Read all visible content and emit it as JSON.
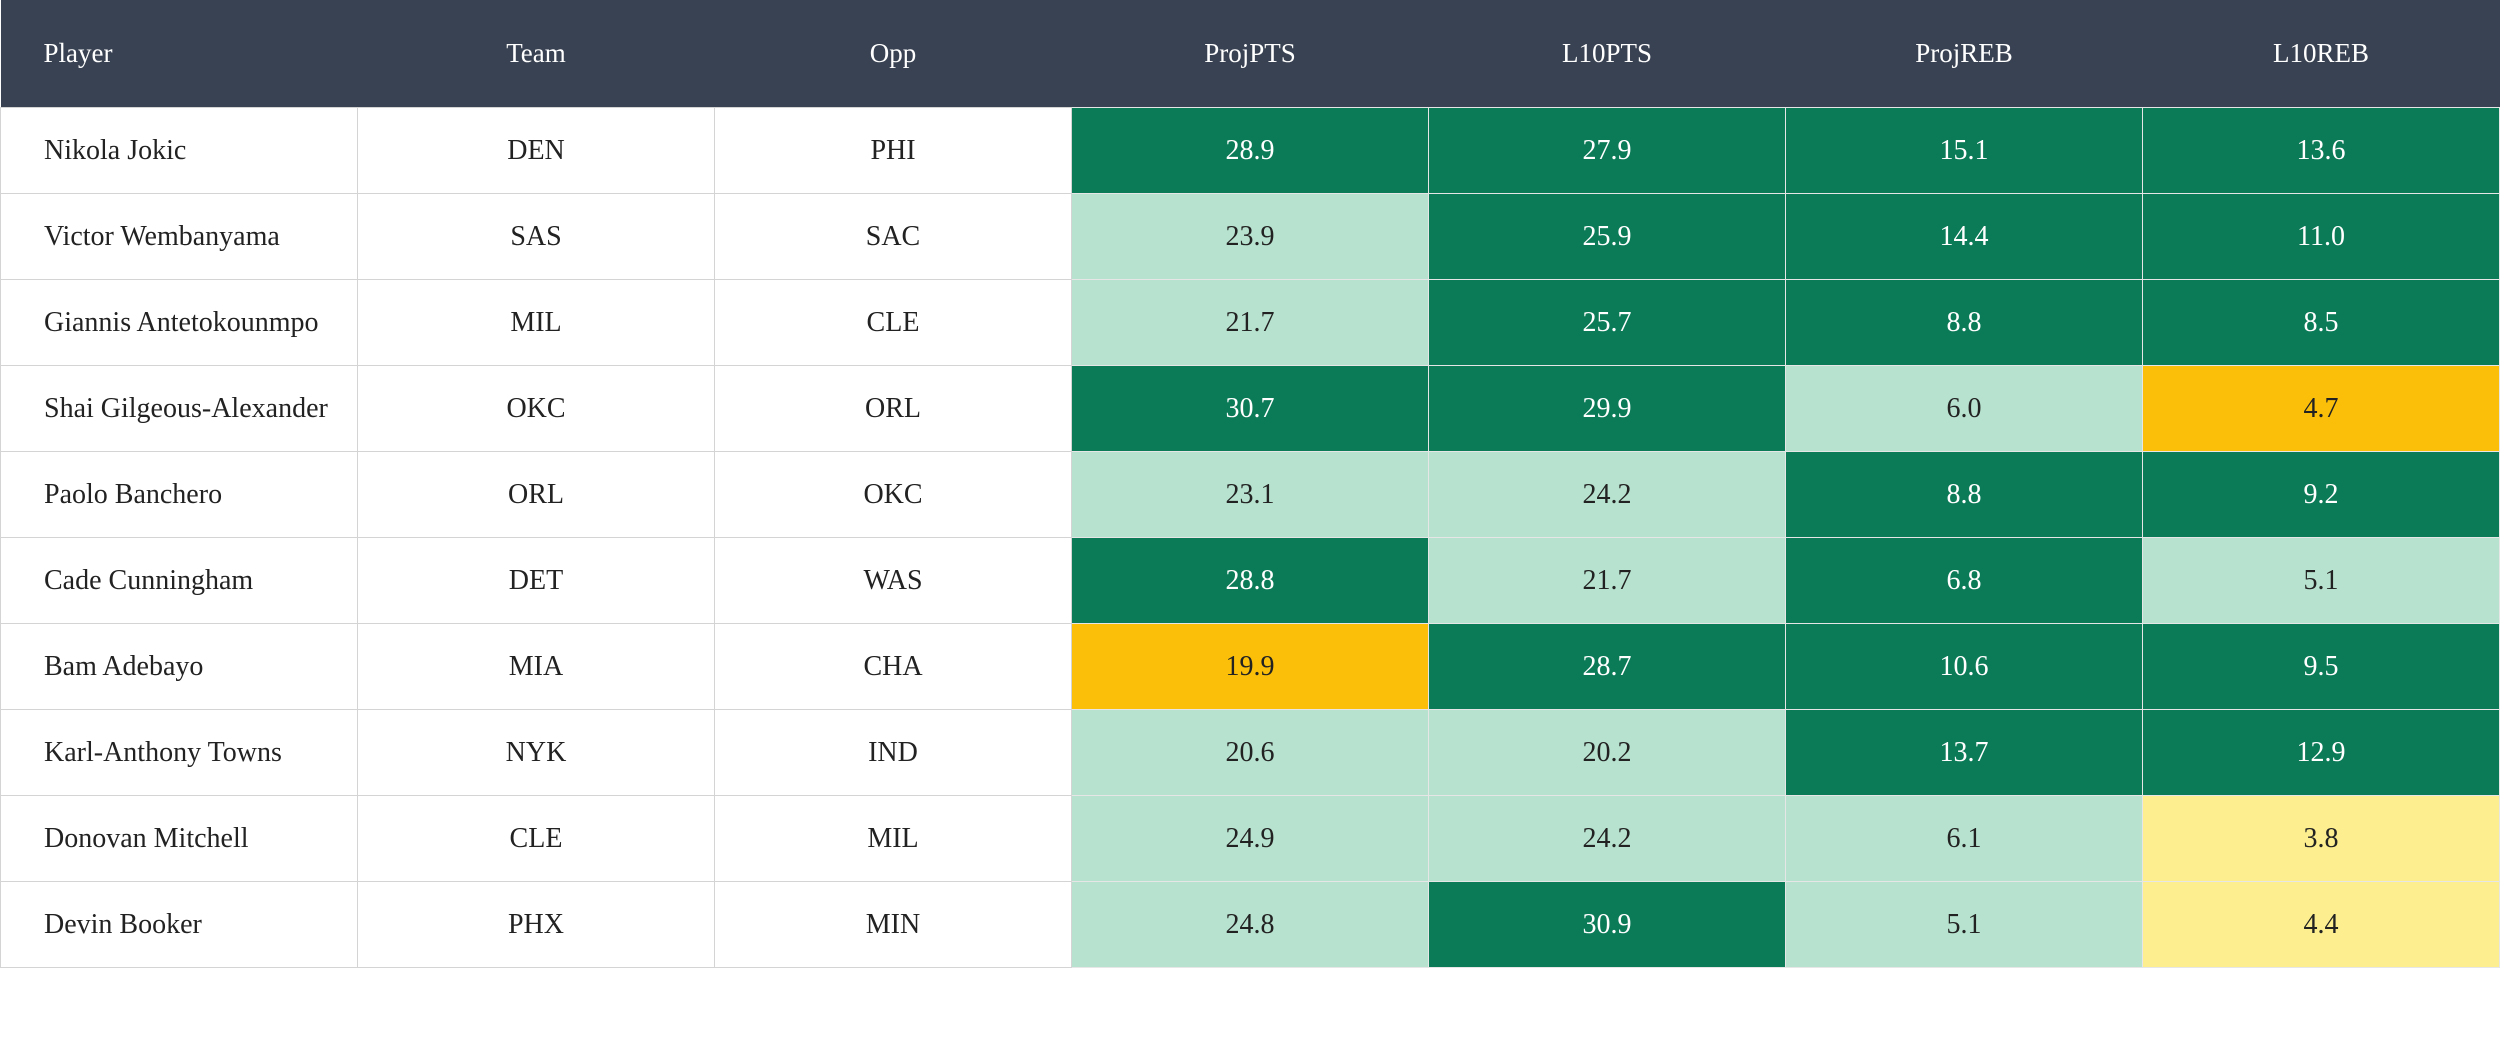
{
  "table": {
    "columns": [
      "Player",
      "Team",
      "Opp",
      "ProjPTS",
      "L10PTS",
      "ProjREB",
      "L10REB"
    ],
    "rows": [
      [
        "Nikola Jokic",
        "DEN",
        "PHI",
        "28.9",
        "27.9",
        "15.1",
        "13.6"
      ],
      [
        "Victor Wembanyama",
        "SAS",
        "SAC",
        "23.9",
        "25.9",
        "14.4",
        "11.0"
      ],
      [
        "Giannis Antetokounmpo",
        "MIL",
        "CLE",
        "21.7",
        "25.7",
        "8.8",
        "8.5"
      ],
      [
        "Shai Gilgeous-Alexander",
        "OKC",
        "ORL",
        "30.7",
        "29.9",
        "6.0",
        "4.7"
      ],
      [
        "Paolo Banchero",
        "ORL",
        "OKC",
        "23.1",
        "24.2",
        "8.8",
        "9.2"
      ],
      [
        "Cade Cunningham",
        "DET",
        "WAS",
        "28.8",
        "21.7",
        "6.8",
        "5.1"
      ],
      [
        "Bam Adebayo",
        "MIA",
        "CHA",
        "19.9",
        "28.7",
        "10.6",
        "9.5"
      ],
      [
        "Karl-Anthony Towns",
        "NYK",
        "IND",
        "20.6",
        "20.2",
        "13.7",
        "12.9"
      ],
      [
        "Donovan Mitchell",
        "CLE",
        "MIL",
        "24.9",
        "24.2",
        "6.1",
        "3.8"
      ],
      [
        "Devin Booker",
        "PHX",
        "MIN",
        "24.8",
        "30.9",
        "5.1",
        "4.4"
      ]
    ],
    "cell_fills": [
      [
        "#0b7a57",
        "#0b7a57",
        "#0b7a57",
        "#0b7a57"
      ],
      [
        "#b7e2cf",
        "#0b7a57",
        "#0b7a57",
        "#0b7a57"
      ],
      [
        "#b7e2cf",
        "#0b7a57",
        "#0b7a57",
        "#0b7a57"
      ],
      [
        "#0b7a57",
        "#0b7a57",
        "#b7e2cf",
        "#fbbf0a"
      ],
      [
        "#b7e2cf",
        "#b7e2cf",
        "#0b7a57",
        "#0b7a57"
      ],
      [
        "#0b7a57",
        "#b7e2cf",
        "#0b7a57",
        "#b7e2cf"
      ],
      [
        "#fbbf0a",
        "#0b7a57",
        "#0b7a57",
        "#0b7a57"
      ],
      [
        "#b7e2cf",
        "#b7e2cf",
        "#0b7a57",
        "#0b7a57"
      ],
      [
        "#b7e2cf",
        "#b7e2cf",
        "#b7e2cf",
        "#fdef8f"
      ],
      [
        "#b7e2cf",
        "#0b7a57",
        "#b7e2cf",
        "#fdef8f"
      ]
    ]
  }
}
